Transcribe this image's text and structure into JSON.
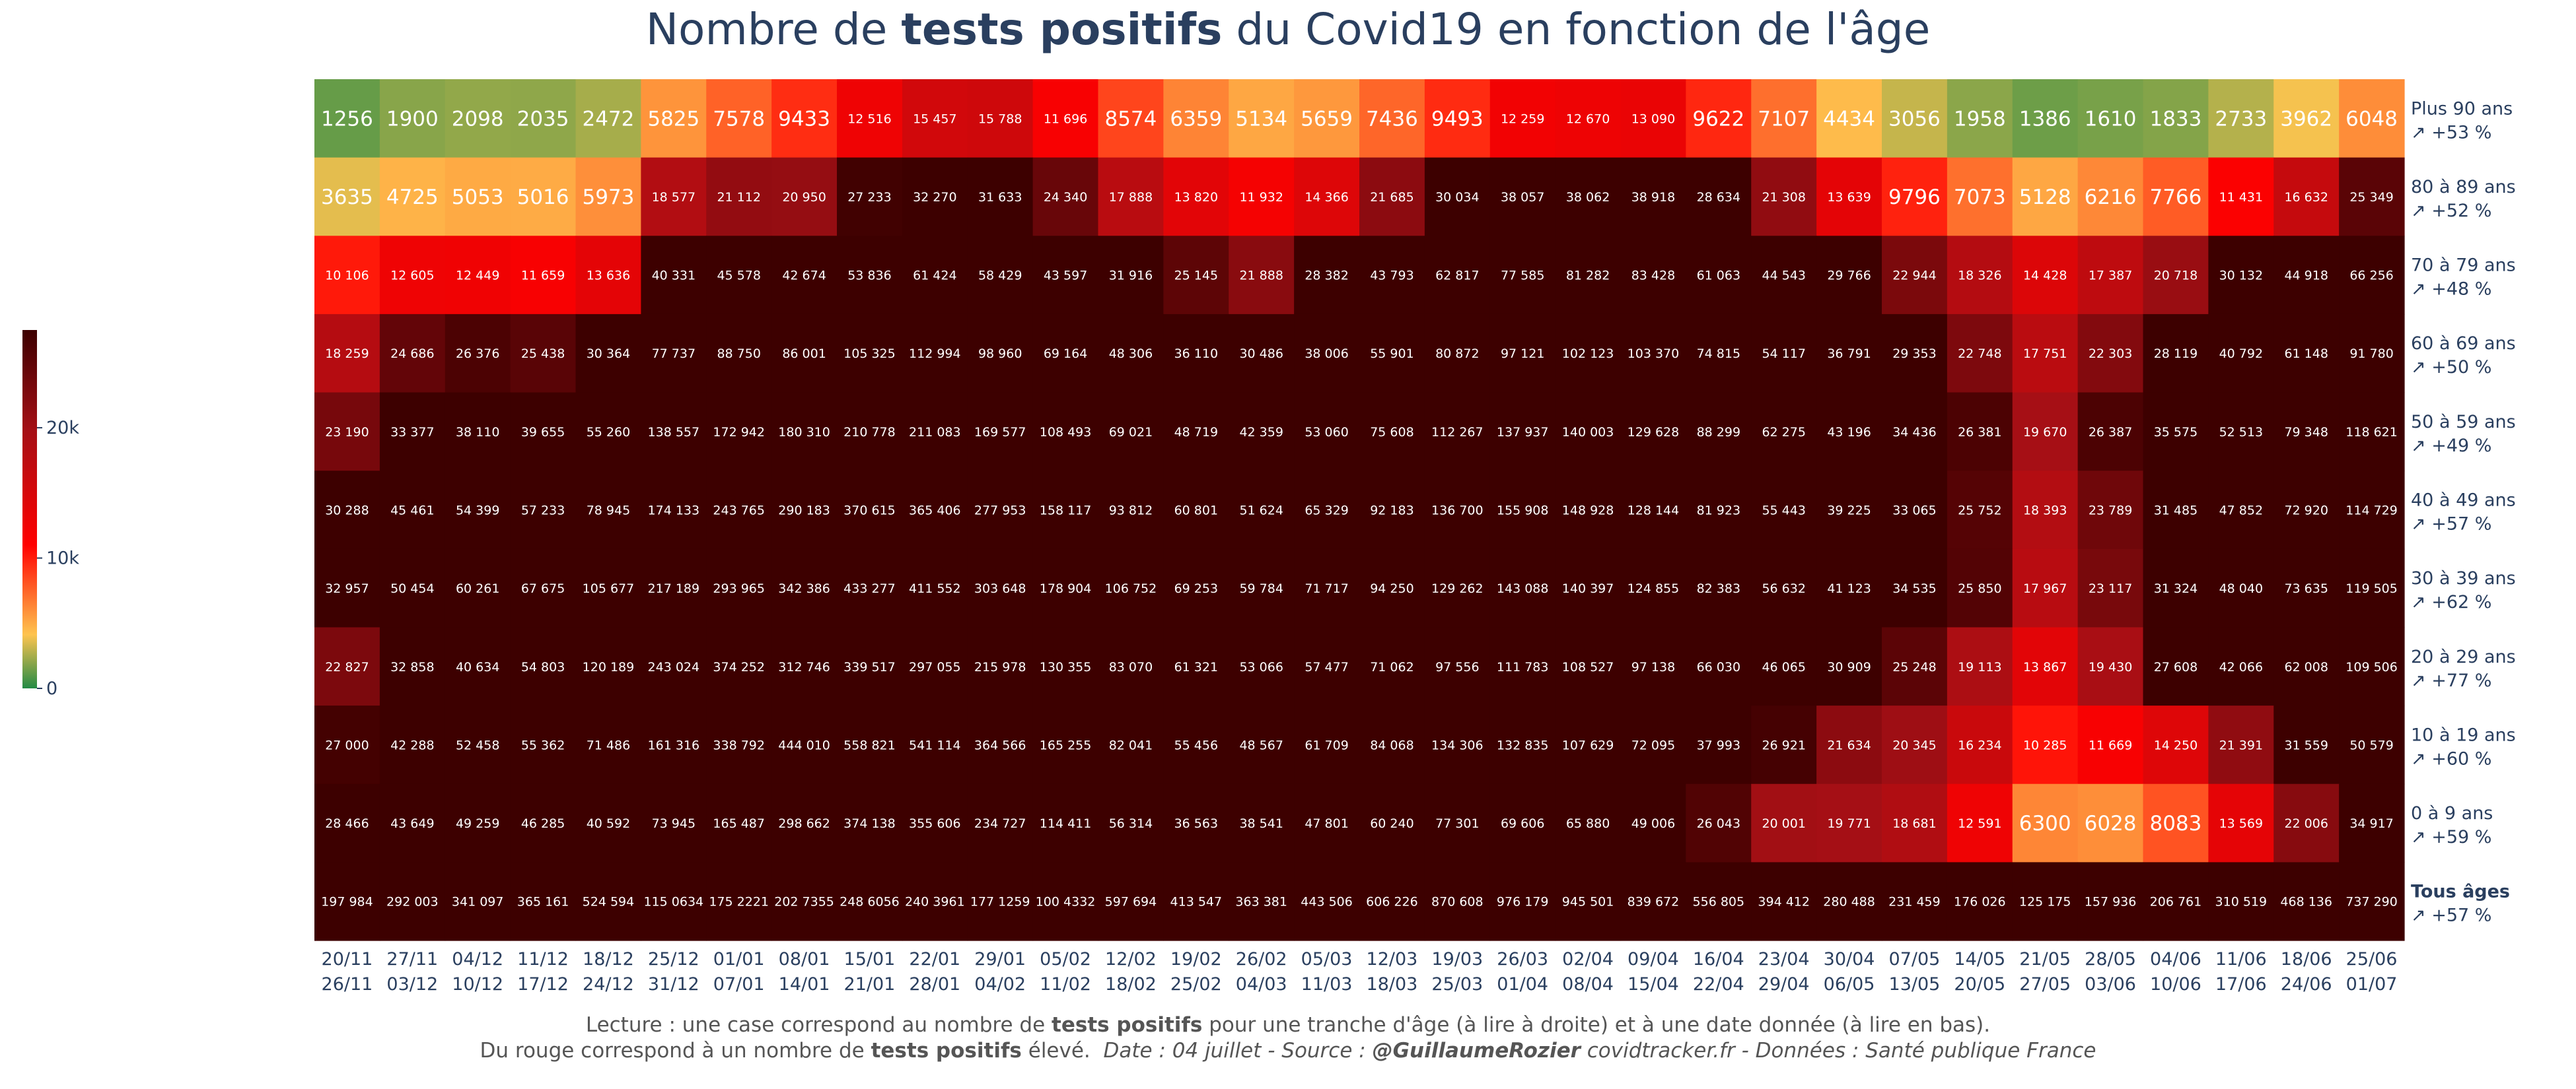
{
  "title": {
    "prefix": "Nombre de ",
    "bold": "tests positifs",
    "suffix": " du Covid19 en fonction de l'âge"
  },
  "notes": {
    "line1_prefix": "Lecture : une case correspond au nombre de ",
    "line1_bold": "tests positifs",
    "line1_suffix": " pour une tranche d'âge (à lire à droite) et à une date donnée (à lire en bas).",
    "line2_prefix": "Du rouge correspond à un nombre de ",
    "line2_bold": "tests positifs",
    "line2_suffix": " élevé.",
    "line2_source_a": "Date : 04 juillet - Source : ",
    "line2_source_handle": "@GuillaumeRozier",
    "line2_source_b": " covidtracker.fr - Données : Santé publique France"
  },
  "chart_data": {
    "type": "heatmap",
    "x": [
      [
        "20/11",
        "26/11"
      ],
      [
        "27/11",
        "03/12"
      ],
      [
        "04/12",
        "10/12"
      ],
      [
        "11/12",
        "17/12"
      ],
      [
        "18/12",
        "24/12"
      ],
      [
        "25/12",
        "31/12"
      ],
      [
        "01/01",
        "07/01"
      ],
      [
        "08/01",
        "14/01"
      ],
      [
        "15/01",
        "21/01"
      ],
      [
        "22/01",
        "28/01"
      ],
      [
        "29/01",
        "04/02"
      ],
      [
        "05/02",
        "11/02"
      ],
      [
        "12/02",
        "18/02"
      ],
      [
        "19/02",
        "25/02"
      ],
      [
        "26/02",
        "04/03"
      ],
      [
        "05/03",
        "11/03"
      ],
      [
        "12/03",
        "18/03"
      ],
      [
        "19/03",
        "25/03"
      ],
      [
        "26/03",
        "01/04"
      ],
      [
        "02/04",
        "08/04"
      ],
      [
        "09/04",
        "15/04"
      ],
      [
        "16/04",
        "22/04"
      ],
      [
        "23/04",
        "29/04"
      ],
      [
        "30/04",
        "06/05"
      ],
      [
        "07/05",
        "13/05"
      ],
      [
        "14/05",
        "20/05"
      ],
      [
        "21/05",
        "27/05"
      ],
      [
        "28/05",
        "03/06"
      ],
      [
        "04/06",
        "10/06"
      ],
      [
        "11/06",
        "17/06"
      ],
      [
        "18/06",
        "24/06"
      ],
      [
        "25/06",
        "01/07"
      ]
    ],
    "rows": [
      {
        "label": "Plus 90 ans",
        "change": "↗ +53 %",
        "bold": false,
        "values": [
          "1256",
          "1900",
          "2098",
          "2035",
          "2472",
          "5825",
          "7578",
          "9433",
          "12 516",
          "15 457",
          "15 788",
          "11 696",
          "8574",
          "6359",
          "5134",
          "5659",
          "7436",
          "9493",
          "12 259",
          "12 670",
          "13 090",
          "9622",
          "7107",
          "4434",
          "3056",
          "1958",
          "1386",
          "1610",
          "1833",
          "2733",
          "3962",
          "6048"
        ]
      },
      {
        "label": "80 à 89 ans",
        "change": "↗ +52 %",
        "bold": false,
        "values": [
          "3635",
          "4725",
          "5053",
          "5016",
          "5973",
          "18 577",
          "21 112",
          "20 950",
          "27 233",
          "32 270",
          "31 633",
          "24 340",
          "17 888",
          "13 820",
          "11 932",
          "14 366",
          "21 685",
          "30 034",
          "38 057",
          "38 062",
          "38 918",
          "28 634",
          "21 308",
          "13 639",
          "9796",
          "7073",
          "5128",
          "6216",
          "7766",
          "11 431",
          "16 632",
          "25 349"
        ]
      },
      {
        "label": "70 à 79 ans",
        "change": "↗ +48 %",
        "bold": false,
        "values": [
          "10 106",
          "12 605",
          "12 449",
          "11 659",
          "13 636",
          "40 331",
          "45 578",
          "42 674",
          "53 836",
          "61 424",
          "58 429",
          "43 597",
          "31 916",
          "25 145",
          "21 888",
          "28 382",
          "43 793",
          "62 817",
          "77 585",
          "81 282",
          "83 428",
          "61 063",
          "44 543",
          "29 766",
          "22 944",
          "18 326",
          "14 428",
          "17 387",
          "20 718",
          "30 132",
          "44 918",
          "66 256"
        ]
      },
      {
        "label": "60 à 69 ans",
        "change": "↗ +50 %",
        "bold": false,
        "values": [
          "18 259",
          "24 686",
          "26 376",
          "25 438",
          "30 364",
          "77 737",
          "88 750",
          "86 001",
          "105 325",
          "112 994",
          "98 960",
          "69 164",
          "48 306",
          "36 110",
          "30 486",
          "38 006",
          "55 901",
          "80 872",
          "97 121",
          "102 123",
          "103 370",
          "74 815",
          "54 117",
          "36 791",
          "29 353",
          "22 748",
          "17 751",
          "22 303",
          "28 119",
          "40 792",
          "61 148",
          "91 780"
        ]
      },
      {
        "label": "50 à 59 ans",
        "change": "↗ +49 %",
        "bold": false,
        "values": [
          "23 190",
          "33 377",
          "38 110",
          "39 655",
          "55 260",
          "138 557",
          "172 942",
          "180 310",
          "210 778",
          "211 083",
          "169 577",
          "108 493",
          "69 021",
          "48 719",
          "42 359",
          "53 060",
          "75 608",
          "112 267",
          "137 937",
          "140 003",
          "129 628",
          "88 299",
          "62 275",
          "43 196",
          "34 436",
          "26 381",
          "19 670",
          "26 387",
          "35 575",
          "52 513",
          "79 348",
          "118 621"
        ]
      },
      {
        "label": "40 à 49 ans",
        "change": "↗ +57 %",
        "bold": false,
        "values": [
          "30 288",
          "45 461",
          "54 399",
          "57 233",
          "78 945",
          "174 133",
          "243 765",
          "290 183",
          "370 615",
          "365 406",
          "277 953",
          "158 117",
          "93 812",
          "60 801",
          "51 624",
          "65 329",
          "92 183",
          "136 700",
          "155 908",
          "148 928",
          "128 144",
          "81 923",
          "55 443",
          "39 225",
          "33 065",
          "25 752",
          "18 393",
          "23 789",
          "31 485",
          "47 852",
          "72 920",
          "114 729"
        ]
      },
      {
        "label": "30 à 39 ans",
        "change": "↗ +62 %",
        "bold": false,
        "values": [
          "32 957",
          "50 454",
          "60 261",
          "67 675",
          "105 677",
          "217 189",
          "293 965",
          "342 386",
          "433 277",
          "411 552",
          "303 648",
          "178 904",
          "106 752",
          "69 253",
          "59 784",
          "71 717",
          "94 250",
          "129 262",
          "143 088",
          "140 397",
          "124 855",
          "82 383",
          "56 632",
          "41 123",
          "34 535",
          "25 850",
          "17 967",
          "23 117",
          "31 324",
          "48 040",
          "73 635",
          "119 505"
        ]
      },
      {
        "label": "20 à 29 ans",
        "change": "↗ +77 %",
        "bold": false,
        "values": [
          "22 827",
          "32 858",
          "40 634",
          "54 803",
          "120 189",
          "243 024",
          "374 252",
          "312 746",
          "339 517",
          "297 055",
          "215 978",
          "130 355",
          "83 070",
          "61 321",
          "53 066",
          "57 477",
          "71 062",
          "97 556",
          "111 783",
          "108 527",
          "97 138",
          "66 030",
          "46 065",
          "30 909",
          "25 248",
          "19 113",
          "13 867",
          "19 430",
          "27 608",
          "42 066",
          "62 008",
          "109 506"
        ]
      },
      {
        "label": "10 à 19 ans",
        "change": "↗ +60 %",
        "bold": false,
        "values": [
          "27 000",
          "42 288",
          "52 458",
          "55 362",
          "71 486",
          "161 316",
          "338 792",
          "444 010",
          "558 821",
          "541 114",
          "364 566",
          "165 255",
          "82 041",
          "55 456",
          "48 567",
          "61 709",
          "84 068",
          "134 306",
          "132 835",
          "107 629",
          "72 095",
          "37 993",
          "26 921",
          "21 634",
          "20 345",
          "16 234",
          "10 285",
          "11 669",
          "14 250",
          "21 391",
          "31 559",
          "50 579"
        ]
      },
      {
        "label": "0 à 9 ans",
        "change": "↗ +59 %",
        "bold": false,
        "values": [
          "28 466",
          "43 649",
          "49 259",
          "46 285",
          "40 592",
          "73 945",
          "165 487",
          "298 662",
          "374 138",
          "355 606",
          "234 727",
          "114 411",
          "56 314",
          "36 563",
          "38 541",
          "47 801",
          "60 240",
          "77 301",
          "69 606",
          "65 880",
          "49 006",
          "26 043",
          "20 001",
          "19 771",
          "18 681",
          "12 591",
          "6300",
          "6028",
          "8083",
          "13 569",
          "22 006",
          "34 917"
        ]
      },
      {
        "label": "Tous âges",
        "change": "↗ +57 %",
        "bold": true,
        "values": [
          "197 984",
          "292 003",
          "341 097",
          "365 161",
          "524 594",
          "115 0634",
          "175 2221",
          "202 7355",
          "248 6056",
          "240 3961",
          "177 1259",
          "100 4332",
          "597 694",
          "413 547",
          "363 381",
          "443 506",
          "606 226",
          "870 608",
          "976 179",
          "945 501",
          "839 672",
          "556 805",
          "394 412",
          "280 488",
          "231 459",
          "176 026",
          "125 175",
          "157 936",
          "206 761",
          "310 519",
          "468 136",
          "737 290"
        ]
      }
    ],
    "colorscale": [
      "#238b45",
      "#fec44f",
      "#ff0000",
      "#a50f15",
      "#3d0000"
    ],
    "colorbar": {
      "ticks": [
        "0",
        "10k",
        "20k"
      ],
      "tick_values": [
        0,
        10000,
        20000
      ],
      "max": 27500
    }
  }
}
